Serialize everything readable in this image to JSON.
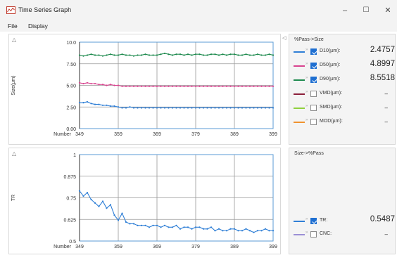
{
  "window": {
    "title": "Time Series Graph",
    "minimize_glyph": "–",
    "maximize_glyph": "☐",
    "close_glyph": "✕"
  },
  "menu": {
    "file": "File",
    "display": "Display"
  },
  "collapse_glyph": "△",
  "side_collapse_glyph": "◁",
  "top_legend": {
    "title": "%Pass->Size",
    "items": [
      {
        "label": "D10(µm):",
        "value": "2.4757",
        "checked": true,
        "color": "#2f7fd6"
      },
      {
        "label": "D50(µm):",
        "value": "4.8997",
        "checked": true,
        "color": "#d8448f"
      },
      {
        "label": "D90(µm):",
        "value": "8.5518",
        "checked": true,
        "color": "#1e8a4e"
      },
      {
        "label": "VMD(µm):",
        "value": "–",
        "checked": false,
        "color": "#8b1f3a"
      },
      {
        "label": "SMD(µm):",
        "value": "–",
        "checked": false,
        "color": "#8fd13d"
      },
      {
        "label": "MOD(µm):",
        "value": "–",
        "checked": false,
        "color": "#f0922f"
      }
    ]
  },
  "bottom_legend": {
    "title": "Size->%Pass",
    "items": [
      {
        "label": "TR:",
        "value": "0.5487",
        "checked": true,
        "color": "#2f7fd6"
      },
      {
        "label": "CNC:",
        "value": "–",
        "checked": false,
        "color": "#9b8fd6"
      }
    ]
  },
  "chart_data": [
    {
      "type": "line",
      "xlabel": "Number",
      "ylabel": "Size(µm)",
      "x_ticks": [
        "349",
        "359",
        "369",
        "379",
        "389",
        "399"
      ],
      "y_ticks": [
        "0.00",
        "2.50",
        "5.00",
        "7.50",
        "10.0"
      ],
      "xlim": [
        349,
        399
      ],
      "ylim": [
        0,
        10
      ],
      "grid": true,
      "x": [
        349,
        350,
        351,
        352,
        353,
        354,
        355,
        356,
        357,
        358,
        359,
        360,
        361,
        362,
        363,
        364,
        365,
        366,
        367,
        368,
        369,
        370,
        371,
        372,
        373,
        374,
        375,
        376,
        377,
        378,
        379,
        380,
        381,
        382,
        383,
        384,
        385,
        386,
        387,
        388,
        389,
        390,
        391,
        392,
        393,
        394,
        395,
        396,
        397,
        398,
        399
      ],
      "series": [
        {
          "name": "D90(µm)",
          "color": "#1e8a4e",
          "values": [
            8.5,
            8.4,
            8.5,
            8.6,
            8.5,
            8.5,
            8.4,
            8.5,
            8.6,
            8.5,
            8.5,
            8.6,
            8.5,
            8.5,
            8.4,
            8.5,
            8.5,
            8.6,
            8.5,
            8.5,
            8.5,
            8.6,
            8.7,
            8.6,
            8.5,
            8.6,
            8.6,
            8.5,
            8.6,
            8.5,
            8.6,
            8.6,
            8.5,
            8.5,
            8.6,
            8.6,
            8.5,
            8.6,
            8.5,
            8.6,
            8.6,
            8.5,
            8.5,
            8.6,
            8.5,
            8.5,
            8.6,
            8.5,
            8.5,
            8.6,
            8.5
          ]
        },
        {
          "name": "D50(µm)",
          "color": "#d8448f",
          "values": [
            5.3,
            5.2,
            5.3,
            5.2,
            5.2,
            5.1,
            5.1,
            5.0,
            5.1,
            5.0,
            5.0,
            4.9,
            4.9,
            4.9,
            4.9,
            4.9,
            4.9,
            4.9,
            4.9,
            4.9,
            4.9,
            4.9,
            4.9,
            4.9,
            4.9,
            4.9,
            4.9,
            4.9,
            4.9,
            4.9,
            4.9,
            4.9,
            4.9,
            4.9,
            4.9,
            4.9,
            4.9,
            4.9,
            4.9,
            4.9,
            4.9,
            4.9,
            4.9,
            4.9,
            4.9,
            4.9,
            4.9,
            4.9,
            4.9,
            4.9,
            4.9
          ]
        },
        {
          "name": "D10(µm)",
          "color": "#2f7fd6",
          "values": [
            3.0,
            3.0,
            3.1,
            2.9,
            2.8,
            2.8,
            2.7,
            2.7,
            2.6,
            2.6,
            2.5,
            2.4,
            2.4,
            2.5,
            2.4,
            2.4,
            2.4,
            2.4,
            2.4,
            2.4,
            2.4,
            2.4,
            2.4,
            2.4,
            2.4,
            2.4,
            2.4,
            2.4,
            2.4,
            2.4,
            2.4,
            2.4,
            2.4,
            2.4,
            2.4,
            2.4,
            2.4,
            2.4,
            2.4,
            2.4,
            2.4,
            2.4,
            2.4,
            2.4,
            2.4,
            2.4,
            2.4,
            2.4,
            2.4,
            2.4,
            2.4
          ]
        }
      ]
    },
    {
      "type": "line",
      "xlabel": "Number",
      "ylabel": "TR",
      "x_ticks": [
        "349",
        "359",
        "369",
        "379",
        "389",
        "399"
      ],
      "y_ticks": [
        "0.5",
        "0.625",
        "0.75",
        "0.875",
        "1"
      ],
      "xlim": [
        349,
        399
      ],
      "ylim": [
        0.5,
        1
      ],
      "grid": true,
      "x": [
        349,
        350,
        351,
        352,
        353,
        354,
        355,
        356,
        357,
        358,
        359,
        360,
        361,
        362,
        363,
        364,
        365,
        366,
        367,
        368,
        369,
        370,
        371,
        372,
        373,
        374,
        375,
        376,
        377,
        378,
        379,
        380,
        381,
        382,
        383,
        384,
        385,
        386,
        387,
        388,
        389,
        390,
        391,
        392,
        393,
        394,
        395,
        396,
        397,
        398,
        399
      ],
      "series": [
        {
          "name": "TR",
          "color": "#2f7fd6",
          "values": [
            0.79,
            0.76,
            0.78,
            0.74,
            0.72,
            0.7,
            0.73,
            0.69,
            0.71,
            0.65,
            0.62,
            0.66,
            0.61,
            0.6,
            0.6,
            0.59,
            0.59,
            0.59,
            0.58,
            0.59,
            0.59,
            0.58,
            0.59,
            0.58,
            0.58,
            0.59,
            0.57,
            0.58,
            0.58,
            0.57,
            0.58,
            0.58,
            0.57,
            0.57,
            0.58,
            0.56,
            0.57,
            0.56,
            0.56,
            0.57,
            0.57,
            0.56,
            0.56,
            0.57,
            0.56,
            0.55,
            0.56,
            0.56,
            0.57,
            0.56,
            0.56
          ]
        }
      ]
    }
  ]
}
